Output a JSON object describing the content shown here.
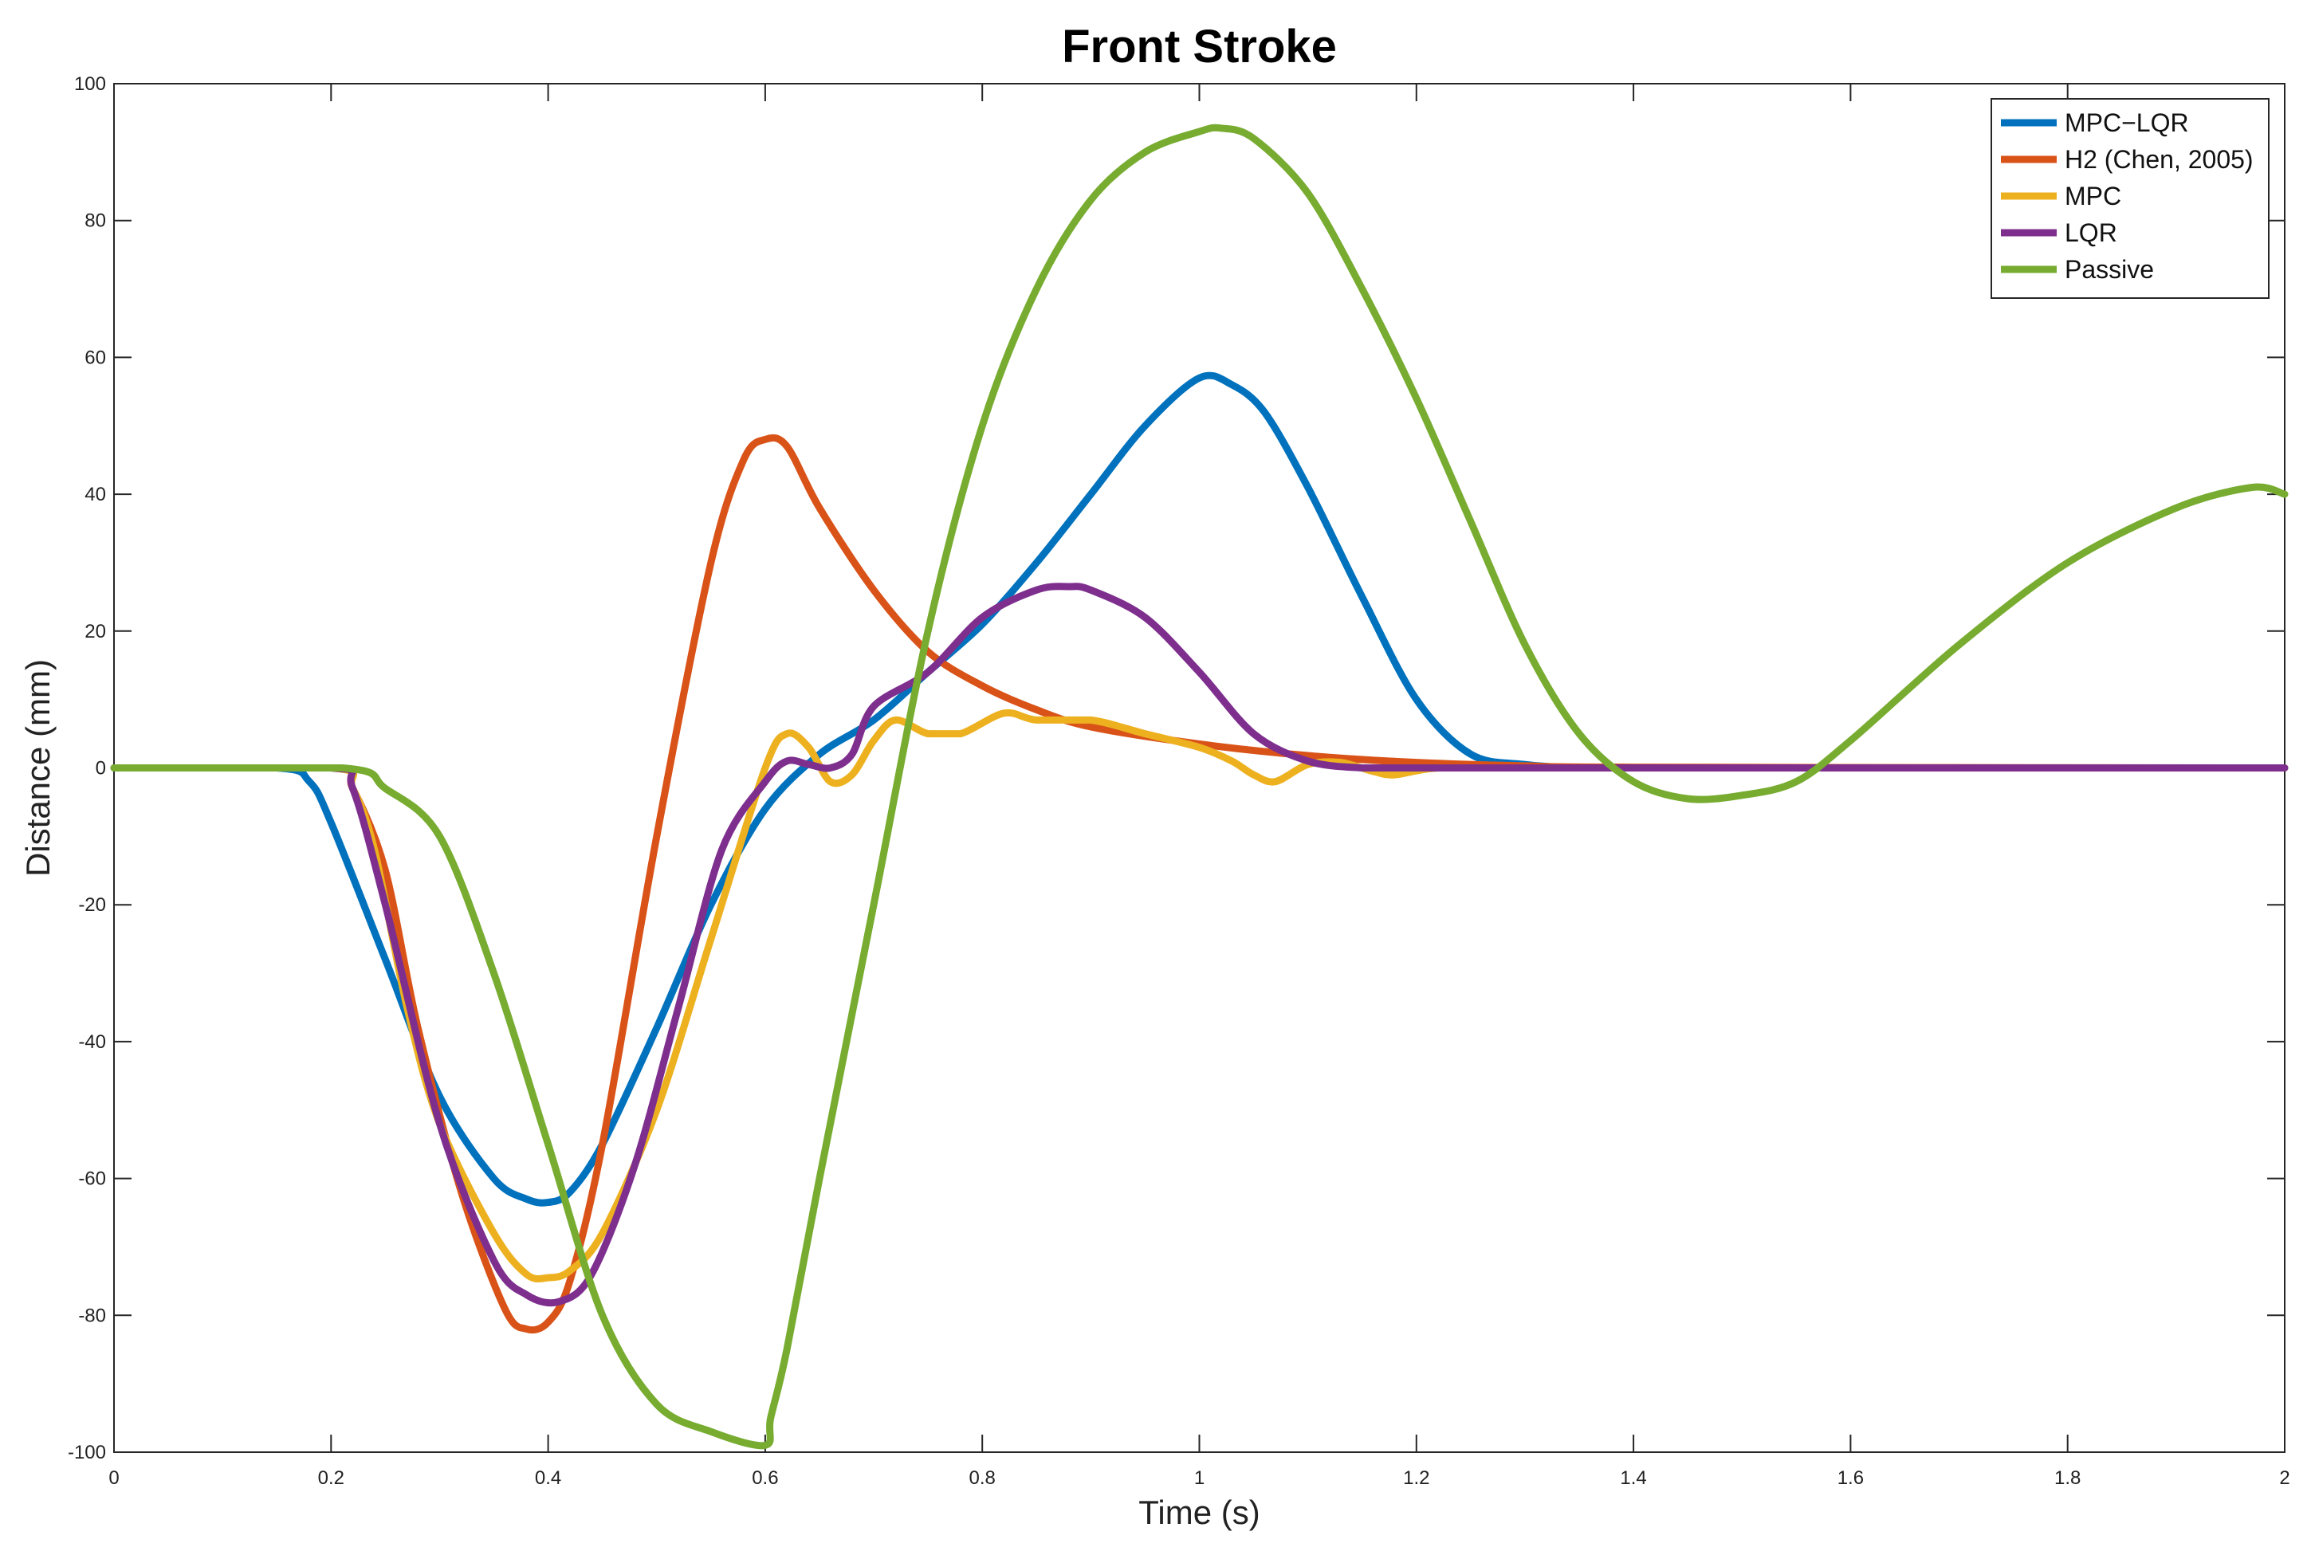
{
  "chart_data": {
    "type": "line",
    "title": "Front Stroke",
    "xlabel": "Time (s)",
    "ylabel": "Distance (mm)",
    "xlim": [
      0,
      2
    ],
    "ylim": [
      -100,
      100
    ],
    "xticks": [
      0,
      0.2,
      0.4,
      0.6,
      0.8,
      1,
      1.2,
      1.4,
      1.6,
      1.8,
      2
    ],
    "xtick_labels": [
      "0",
      "0.2",
      "0.4",
      "0.6",
      "0.8",
      "1",
      "1.2",
      "1.4",
      "1.6",
      "1.8",
      "2"
    ],
    "yticks": [
      -100,
      -80,
      -60,
      -40,
      -20,
      0,
      20,
      40,
      60,
      80,
      100
    ],
    "ytick_labels": [
      "-100",
      "-80",
      "-60",
      "-40",
      "-20",
      "0",
      "20",
      "40",
      "60",
      "80",
      "100"
    ],
    "grid": false,
    "legend_position": "top-right",
    "series": [
      {
        "name": "MPC−LQR",
        "color": "#0072BD",
        "x": [
          0,
          0.15,
          0.18,
          0.2,
          0.25,
          0.3,
          0.35,
          0.38,
          0.4,
          0.42,
          0.45,
          0.5,
          0.55,
          0.6,
          0.65,
          0.7,
          0.75,
          0.8,
          0.85,
          0.9,
          0.95,
          1.0,
          1.03,
          1.06,
          1.1,
          1.15,
          1.2,
          1.25,
          1.3,
          1.35,
          1.4,
          1.5,
          2.0
        ],
        "y": [
          0,
          0,
          -2,
          -8,
          -28,
          -48,
          -60,
          -63,
          -63.5,
          -62,
          -55,
          -38,
          -20,
          -6,
          2,
          7,
          14,
          21,
          30,
          40,
          50,
          57,
          56,
          52,
          41,
          25,
          10,
          2,
          0.5,
          0,
          0,
          0,
          0
        ]
      },
      {
        "name": "H2 (Chen, 2005)",
        "color": "#D95319",
        "x": [
          0,
          0.2,
          0.22,
          0.25,
          0.28,
          0.32,
          0.36,
          0.38,
          0.4,
          0.42,
          0.45,
          0.5,
          0.55,
          0.58,
          0.6,
          0.62,
          0.65,
          0.7,
          0.75,
          0.8,
          0.85,
          0.9,
          1.0,
          1.1,
          1.2,
          1.3,
          1.4,
          2.0
        ],
        "y": [
          0,
          0,
          -3,
          -15,
          -38,
          -62,
          -79,
          -82,
          -81,
          -75,
          -55,
          -10,
          30,
          45,
          48,
          47,
          38,
          26,
          17,
          12,
          8.5,
          6,
          3.5,
          1.8,
          0.8,
          0.3,
          0.1,
          0
        ]
      },
      {
        "name": "MPC",
        "color": "#EDB120",
        "x": [
          0,
          0.2,
          0.22,
          0.24,
          0.27,
          0.3,
          0.35,
          0.38,
          0.4,
          0.42,
          0.45,
          0.5,
          0.55,
          0.6,
          0.62,
          0.64,
          0.66,
          0.68,
          0.7,
          0.72,
          0.75,
          0.78,
          0.82,
          0.85,
          0.9,
          0.95,
          1.0,
          1.03,
          1.05,
          1.07,
          1.1,
          1.13,
          1.16,
          1.18,
          1.22,
          1.3,
          2.0
        ],
        "y": [
          0,
          0,
          -3,
          -12,
          -35,
          -52,
          -68,
          -74,
          -74.5,
          -73.5,
          -68,
          -50,
          -25,
          0,
          5,
          3,
          -2,
          -1,
          4,
          7,
          5,
          5,
          8,
          7,
          7,
          5,
          3,
          1,
          -1,
          -2,
          0.5,
          0.8,
          -0.5,
          -1,
          0,
          0,
          0
        ]
      },
      {
        "name": "LQR",
        "color": "#7E2F8E",
        "x": [
          0,
          0.2,
          0.22,
          0.25,
          0.3,
          0.35,
          0.38,
          0.41,
          0.44,
          0.48,
          0.52,
          0.56,
          0.6,
          0.62,
          0.64,
          0.66,
          0.68,
          0.7,
          0.75,
          0.8,
          0.85,
          0.88,
          0.9,
          0.95,
          1.0,
          1.05,
          1.1,
          1.15,
          1.2,
          1.3,
          2.0
        ],
        "y": [
          0,
          0,
          -3,
          -20,
          -52,
          -72,
          -77,
          -78,
          -74,
          -58,
          -35,
          -12,
          -2,
          1,
          0.5,
          0,
          2,
          9,
          14,
          22,
          26,
          26.5,
          26,
          22,
          14,
          5,
          1,
          0,
          0,
          0,
          0
        ]
      },
      {
        "name": "Passive",
        "color": "#77AC30",
        "x": [
          0,
          0.21,
          0.25,
          0.3,
          0.35,
          0.4,
          0.45,
          0.5,
          0.55,
          0.6,
          0.605,
          0.62,
          0.65,
          0.7,
          0.75,
          0.8,
          0.85,
          0.9,
          0.95,
          1.0,
          1.02,
          1.05,
          1.1,
          1.15,
          1.2,
          1.25,
          1.3,
          1.35,
          1.4,
          1.45,
          1.5,
          1.55,
          1.6,
          1.7,
          1.8,
          1.9,
          1.97,
          2.0
        ],
        "y": [
          0,
          0,
          -3,
          -10,
          -30,
          -55,
          -80,
          -93,
          -97,
          -99,
          -95,
          -85,
          -60,
          -20,
          20,
          50,
          70,
          83,
          90,
          93,
          93.5,
          92,
          84,
          70,
          54,
          36,
          18,
          5,
          -2,
          -4.5,
          -4,
          -2,
          4,
          18,
          30,
          38,
          41,
          40
        ]
      }
    ]
  }
}
